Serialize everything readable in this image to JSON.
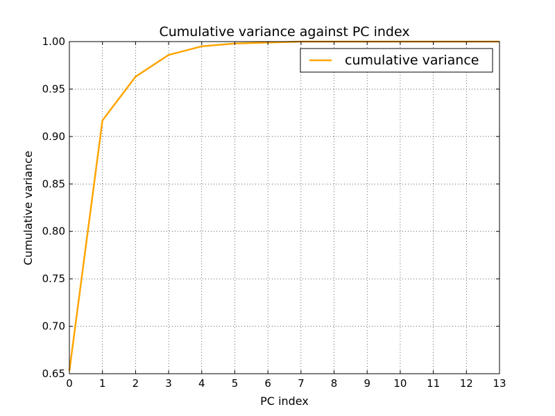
{
  "chart_data": {
    "type": "line",
    "title": "Cumulative variance against PC index",
    "xlabel": "PC index",
    "ylabel": "Cumulative variance",
    "xlim": [
      0,
      13
    ],
    "ylim": [
      0.65,
      1.0
    ],
    "x_ticks": [
      "0",
      "1",
      "2",
      "3",
      "4",
      "5",
      "6",
      "7",
      "8",
      "9",
      "10",
      "11",
      "12",
      "13"
    ],
    "y_ticks": [
      "0.65",
      "0.70",
      "0.75",
      "0.80",
      "0.85",
      "0.90",
      "0.95",
      "1.00"
    ],
    "grid": true,
    "legend_position": "top-right",
    "series": [
      {
        "name": "cumulative variance",
        "color": "#ffa500",
        "x": [
          0,
          1,
          2,
          3,
          4,
          5,
          6,
          7,
          8,
          9,
          10,
          11,
          12,
          13
        ],
        "y": [
          0.653,
          0.917,
          0.963,
          0.986,
          0.995,
          0.998,
          0.999,
          1.0,
          1.0,
          1.0,
          1.0,
          1.0,
          1.0,
          1.0
        ]
      }
    ]
  }
}
